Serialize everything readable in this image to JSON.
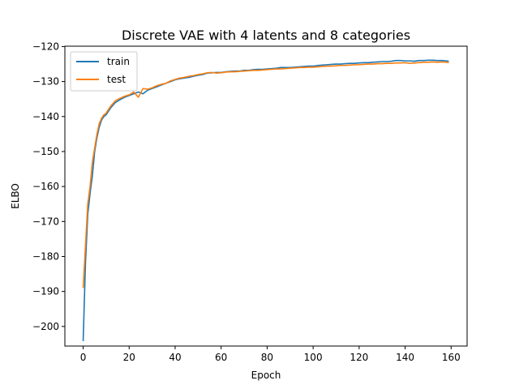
{
  "chart_data": {
    "type": "line",
    "title": "Discrete VAE with 4 latents and 8 categories",
    "xlabel": "Epoch",
    "ylabel": "ELBO",
    "xlim": [
      -7.95,
      166.95
    ],
    "ylim": [
      -205.6,
      -119.9
    ],
    "xticks": [
      0,
      20,
      40,
      60,
      80,
      100,
      120,
      140,
      160
    ],
    "yticks": [
      -200,
      -190,
      -180,
      -170,
      -160,
      -150,
      -140,
      -130,
      -120
    ],
    "grid": false,
    "legend_position": "top-left",
    "series": [
      {
        "name": "train",
        "color": "#1f77b4",
        "x": [
          0,
          1,
          2,
          3,
          4,
          5,
          6,
          7,
          8,
          9,
          10,
          12,
          14,
          16,
          18,
          20,
          22,
          24,
          26,
          28,
          30,
          32,
          34,
          36,
          38,
          40,
          42,
          44,
          46,
          48,
          50,
          52,
          54,
          56,
          58,
          60,
          62,
          64,
          66,
          68,
          70,
          72,
          74,
          76,
          78,
          80,
          82,
          84,
          86,
          88,
          90,
          92,
          94,
          96,
          98,
          100,
          102,
          104,
          106,
          108,
          110,
          112,
          114,
          116,
          118,
          120,
          122,
          124,
          126,
          128,
          130,
          132,
          134,
          136,
          138,
          140,
          142,
          144,
          146,
          148,
          150,
          152,
          154,
          156,
          158,
          159
        ],
        "values": [
          -204.2,
          -182.0,
          -168.0,
          -162.0,
          -157.0,
          -150.0,
          -146.0,
          -143.0,
          -141.0,
          -140.0,
          -139.5,
          -137.5,
          -136.0,
          -135.2,
          -134.5,
          -134.0,
          -133.5,
          -133.0,
          -133.5,
          -132.5,
          -132.0,
          -131.5,
          -131.0,
          -130.5,
          -130.0,
          -129.5,
          -129.2,
          -129.0,
          -128.8,
          -128.5,
          -128.2,
          -128.0,
          -127.6,
          -127.5,
          -127.4,
          -127.4,
          -127.2,
          -127.1,
          -127.0,
          -127.0,
          -126.8,
          -126.8,
          -126.6,
          -126.5,
          -126.5,
          -126.4,
          -126.3,
          -126.2,
          -126.0,
          -126.0,
          -126.0,
          -125.9,
          -125.8,
          -125.7,
          -125.6,
          -125.6,
          -125.4,
          -125.3,
          -125.2,
          -125.1,
          -125.0,
          -125.0,
          -124.9,
          -124.8,
          -124.8,
          -124.7,
          -124.6,
          -124.6,
          -124.5,
          -124.4,
          -124.3,
          -124.3,
          -124.2,
          -124.0,
          -124.0,
          -124.1,
          -124.1,
          -124.2,
          -124.0,
          -124.0,
          -123.9,
          -123.9,
          -124.0,
          -124.0,
          -124.1,
          -124.2
        ]
      },
      {
        "name": "test",
        "color": "#ff7f0e",
        "x": [
          0,
          1,
          2,
          3,
          4,
          5,
          6,
          7,
          8,
          9,
          10,
          12,
          14,
          16,
          18,
          20,
          22,
          24,
          26,
          28,
          30,
          32,
          34,
          36,
          38,
          40,
          42,
          44,
          46,
          48,
          50,
          52,
          54,
          56,
          58,
          60,
          62,
          64,
          66,
          68,
          70,
          72,
          74,
          76,
          78,
          80,
          82,
          84,
          86,
          88,
          90,
          92,
          94,
          96,
          98,
          100,
          102,
          104,
          106,
          108,
          110,
          112,
          114,
          116,
          118,
          120,
          122,
          124,
          126,
          128,
          130,
          132,
          134,
          136,
          138,
          140,
          142,
          144,
          146,
          148,
          150,
          152,
          154,
          156,
          158,
          159
        ],
        "values": [
          -189.0,
          -177.0,
          -165.0,
          -160.0,
          -153.0,
          -149.0,
          -145.0,
          -142.0,
          -140.5,
          -139.5,
          -139.0,
          -137.0,
          -135.5,
          -134.8,
          -134.2,
          -133.8,
          -133.0,
          -134.5,
          -132.0,
          -132.2,
          -131.8,
          -131.2,
          -130.8,
          -130.5,
          -129.8,
          -129.4,
          -129.0,
          -128.8,
          -128.5,
          -128.3,
          -128.0,
          -127.8,
          -127.5,
          -127.4,
          -127.6,
          -127.5,
          -127.3,
          -127.2,
          -127.2,
          -127.1,
          -127.0,
          -126.9,
          -126.8,
          -126.8,
          -126.7,
          -126.6,
          -126.5,
          -126.4,
          -126.4,
          -126.3,
          -126.2,
          -126.1,
          -126.0,
          -126.0,
          -125.9,
          -125.9,
          -125.8,
          -125.7,
          -125.6,
          -125.6,
          -125.5,
          -125.4,
          -125.4,
          -125.3,
          -125.2,
          -125.2,
          -125.1,
          -125.0,
          -125.0,
          -124.9,
          -124.9,
          -124.8,
          -124.8,
          -124.7,
          -124.7,
          -124.6,
          -124.8,
          -124.7,
          -124.6,
          -124.5,
          -124.5,
          -124.4,
          -124.5,
          -124.4,
          -124.5,
          -124.6
        ]
      }
    ]
  }
}
